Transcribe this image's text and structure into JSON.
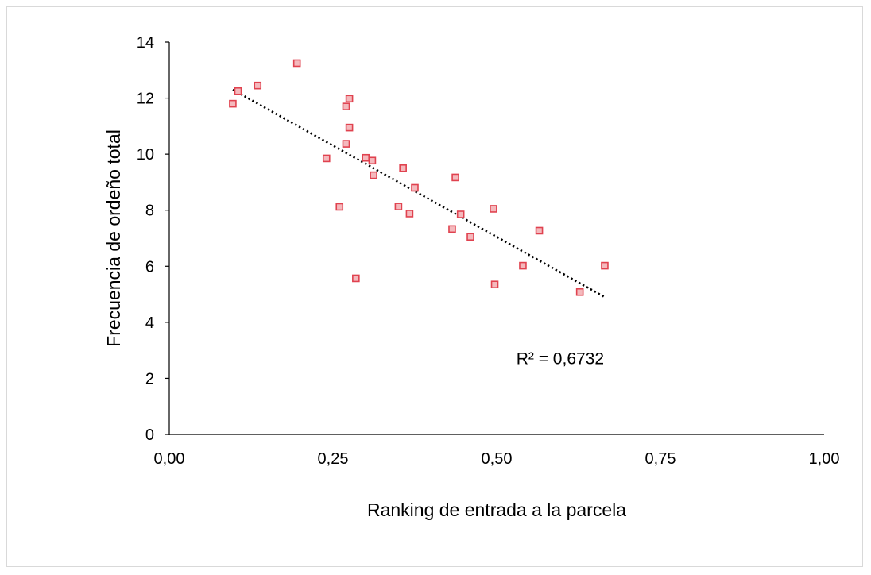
{
  "chart_data": {
    "type": "scatter",
    "title": "",
    "xlabel": "Ranking de entrada a la parcela",
    "ylabel": "Frecuencia de ordeño total",
    "xlim": [
      0,
      1
    ],
    "ylim": [
      0,
      14
    ],
    "x_ticks": [
      {
        "value": 0,
        "label": "0,00"
      },
      {
        "value": 0.25,
        "label": "0,25"
      },
      {
        "value": 0.5,
        "label": "0,50"
      },
      {
        "value": 0.75,
        "label": "0,75"
      },
      {
        "value": 1,
        "label": "1,00"
      }
    ],
    "y_ticks": [
      {
        "value": 0,
        "label": "0"
      },
      {
        "value": 2,
        "label": "2"
      },
      {
        "value": 4,
        "label": "4"
      },
      {
        "value": 6,
        "label": "6"
      },
      {
        "value": 8,
        "label": "8"
      },
      {
        "value": 10,
        "label": "10"
      },
      {
        "value": 12,
        "label": "12"
      },
      {
        "value": 14,
        "label": "14"
      }
    ],
    "grid": false,
    "legend": "none",
    "marker_color": "#e0424f",
    "marker_fill": "#f4b9bd",
    "series": [
      {
        "x": [
          0.097,
          0.105,
          0.135,
          0.195,
          0.24,
          0.26,
          0.27,
          0.27,
          0.275,
          0.275,
          0.285,
          0.3,
          0.31,
          0.312,
          0.35,
          0.357,
          0.367,
          0.375,
          0.432,
          0.437,
          0.445,
          0.46,
          0.495,
          0.497,
          0.54,
          0.565,
          0.627,
          0.665
        ],
        "y": [
          11.8,
          12.25,
          12.45,
          13.25,
          9.85,
          8.12,
          11.7,
          10.37,
          11.98,
          10.95,
          5.57,
          9.87,
          9.77,
          9.25,
          8.13,
          9.5,
          7.88,
          8.8,
          7.33,
          9.17,
          7.85,
          7.05,
          8.05,
          5.35,
          6.02,
          7.27,
          5.08,
          6.02
        ]
      }
    ],
    "trendline": {
      "style": "dotted",
      "color": "#000000",
      "x": [
        0.097,
        0.665
      ],
      "y": [
        12.3,
        4.9
      ]
    },
    "annotations": [
      {
        "text": "R² = 0,6732",
        "x": 0.53,
        "y": 2.7
      }
    ]
  }
}
